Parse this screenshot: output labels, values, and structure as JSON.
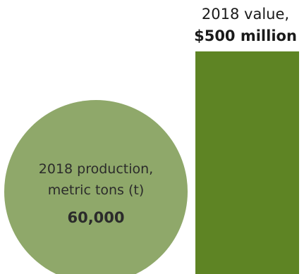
{
  "chart_data": {
    "type": "bar",
    "items": [
      {
        "kind": "circle",
        "label_line1": "2018 production,",
        "label_line2": "metric tons (t)",
        "value_text": "60,000",
        "value": 60000,
        "unit": "metric tons",
        "color": "#8FA86A"
      },
      {
        "kind": "bar",
        "label_line1": "2018 value,",
        "value_text": "$500 million",
        "value": 500,
        "unit": "million USD",
        "color": "#5E8424"
      }
    ]
  }
}
